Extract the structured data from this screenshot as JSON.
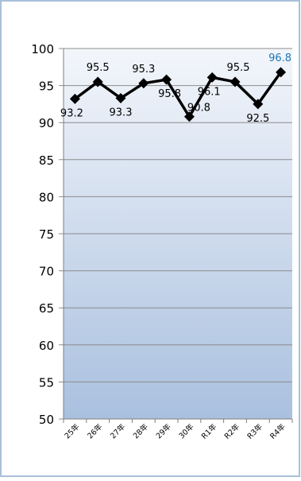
{
  "chart_data": {
    "type": "line",
    "title": "",
    "xlabel": "",
    "ylabel": "",
    "categories": [
      "25年",
      "26年",
      "27年",
      "28年",
      "29年",
      "30年",
      "R1年",
      "R2年",
      "R3年",
      "R4年"
    ],
    "series": [
      {
        "values": [
          93.2,
          95.5,
          93.3,
          95.3,
          95.8,
          90.8,
          96.1,
          95.5,
          92.5,
          96.8
        ]
      }
    ],
    "data_labels": [
      "93.2",
      "95.5",
      "93.3",
      "95.3",
      "95.8",
      "90.8",
      "96.1",
      "95.5",
      "92.5",
      "96.8"
    ],
    "ylim": [
      50,
      100
    ],
    "yticks": [
      50,
      55,
      60,
      65,
      70,
      75,
      80,
      85,
      90,
      95,
      100
    ],
    "grid": true,
    "legend": "none",
    "colors": {
      "line": "#000000",
      "marker": "#000000",
      "last_label": "#1f77b4",
      "label": "#000000",
      "grid": "#8c8c8c",
      "frame_border": "#a9bfd9",
      "plot_top": "#f3f6fb",
      "plot_bottom": "#a9c0df"
    }
  }
}
